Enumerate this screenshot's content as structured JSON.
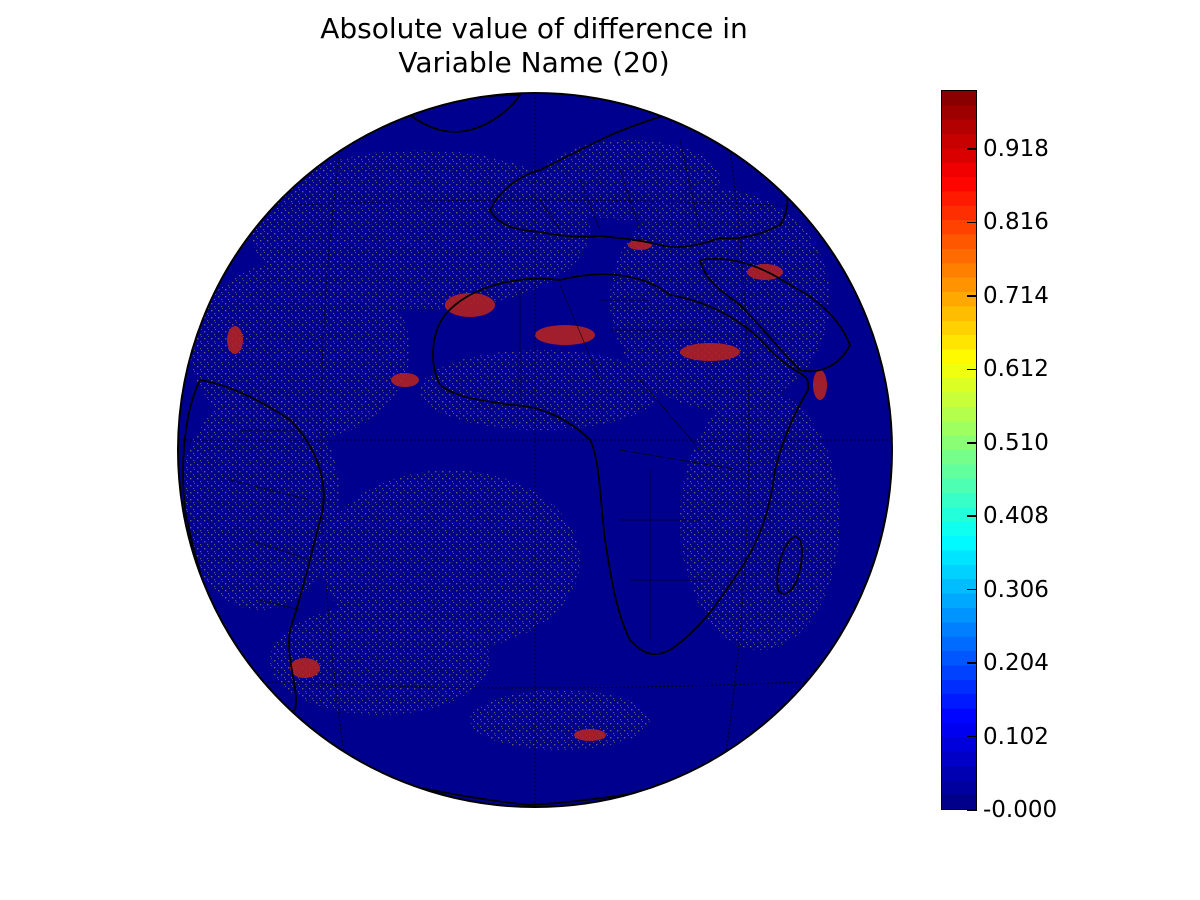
{
  "figure": {
    "title_line1": "Absolute value of difference in",
    "title_line2": "Variable Name (20)"
  },
  "map": {
    "projection": "orthographic",
    "graticule": "dotted",
    "background_value": 0.0,
    "colormap": "jet"
  },
  "colorbar": {
    "min": 0.0,
    "max": 1.0,
    "levels": 50,
    "ticks": [
      {
        "value": 0.0,
        "label": "-0.000"
      },
      {
        "value": 0.102,
        "label": "0.102"
      },
      {
        "value": 0.204,
        "label": "0.204"
      },
      {
        "value": 0.306,
        "label": "0.306"
      },
      {
        "value": 0.408,
        "label": "0.408"
      },
      {
        "value": 0.51,
        "label": "0.510"
      },
      {
        "value": 0.612,
        "label": "0.612"
      },
      {
        "value": 0.714,
        "label": "0.714"
      },
      {
        "value": 0.816,
        "label": "0.816"
      },
      {
        "value": 0.918,
        "label": "0.918"
      }
    ]
  },
  "colors": {
    "ocean_fill": "#00008f",
    "coastline": "#000000",
    "anomaly_red": "#b22222",
    "anomaly_speckle": "#8a6a6a"
  }
}
